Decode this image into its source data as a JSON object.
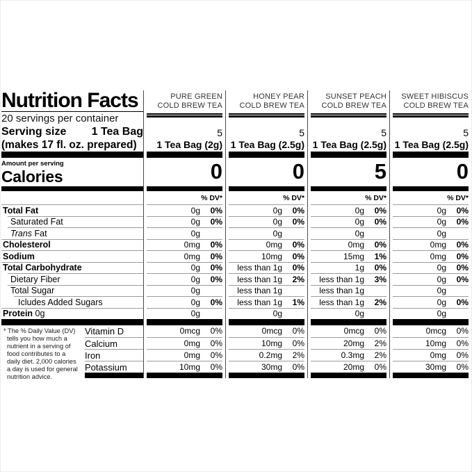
{
  "label": {
    "title": "Nutrition Facts",
    "servings_per_container": "20 servings per container",
    "serving_size_label": "Serving size",
    "serving_size_value": "1 Tea Bag",
    "serving_size_note": "(makes 17 fl. oz. prepared)",
    "amount_per_serving": "Amount per serving",
    "calories_label": "Calories",
    "dv_header": "% DV*",
    "footnote": "* The % Daily Value (DV) tells you how much a nutrient in a serving of food contributes to a daily diet. 2,000 calories a day is used for general nutrition advice."
  },
  "colors": {
    "text": "#000000",
    "hairline": "#9b9b9b",
    "divider": "#4a4a4a",
    "column_name": "#333333"
  },
  "nutrients": [
    {
      "name": "Total Fat",
      "bold": true,
      "indent": 0
    },
    {
      "name": "Saturated Fat",
      "bold": false,
      "indent": 1
    },
    {
      "name": "Trans Fat",
      "bold": false,
      "indent": 1,
      "italic_prefix": "Trans",
      "name_rest": " Fat"
    },
    {
      "name": "Cholesterol",
      "bold": true,
      "indent": 0
    },
    {
      "name": "Sodium",
      "bold": true,
      "indent": 0
    },
    {
      "name": "Total Carbohydrate",
      "bold": true,
      "indent": 0
    },
    {
      "name": "Dietary Fiber",
      "bold": false,
      "indent": 1
    },
    {
      "name": "Total Sugar",
      "bold": false,
      "indent": 1
    },
    {
      "name": "Icludes Added Sugars",
      "bold": false,
      "indent": 2
    },
    {
      "name": "Protein",
      "bold": true,
      "indent": 0,
      "suffix": "0g"
    }
  ],
  "vitamins": [
    "Vitamin D",
    "Calcium",
    "Iron",
    "Potassium"
  ],
  "columns": [
    {
      "name_line1": "PURE GREEN",
      "name_line2": "COLD BREW TEA",
      "servings": "5",
      "serving_size": "1 Tea Bag (2g)",
      "calories": "0",
      "values": [
        [
          "0g",
          "0%"
        ],
        [
          "0g",
          "0%"
        ],
        [
          "0g",
          ""
        ],
        [
          "0mg",
          "0%"
        ],
        [
          "0mg",
          "0%"
        ],
        [
          "0g",
          "0%"
        ],
        [
          "0g",
          "0%"
        ],
        [
          "0g",
          ""
        ],
        [
          "0g",
          "0%"
        ],
        [
          "0g",
          ""
        ]
      ],
      "vitamin_values": [
        [
          "0mcg",
          "0%"
        ],
        [
          "0mg",
          "0%"
        ],
        [
          "0mg",
          "0%"
        ],
        [
          "10mg",
          "0%"
        ]
      ]
    },
    {
      "name_line1": "HONEY PEAR",
      "name_line2": "COLD BREW TEA",
      "servings": "5",
      "serving_size": "1 Tea Bag (2.5g)",
      "calories": "0",
      "values": [
        [
          "0g",
          "0%"
        ],
        [
          "0g",
          "0%"
        ],
        [
          "0g",
          ""
        ],
        [
          "0mg",
          "0%"
        ],
        [
          "10mg",
          "0%"
        ],
        [
          "less than 1g",
          "0%"
        ],
        [
          "less than 1g",
          "2%"
        ],
        [
          "less than 1g",
          ""
        ],
        [
          "less than 1g",
          "1%"
        ],
        [
          "0g",
          ""
        ]
      ],
      "vitamin_values": [
        [
          "0mcg",
          "0%"
        ],
        [
          "10mg",
          "0%"
        ],
        [
          "0.2mg",
          "2%"
        ],
        [
          "30mg",
          "0%"
        ]
      ]
    },
    {
      "name_line1": "SUNSET PEACH",
      "name_line2": "COLD BREW TEA",
      "servings": "5",
      "serving_size": "1 Tea Bag (2.5g)",
      "calories": "5",
      "values": [
        [
          "0g",
          "0%"
        ],
        [
          "0g",
          "0%"
        ],
        [
          "0g",
          ""
        ],
        [
          "0mg",
          "0%"
        ],
        [
          "15mg",
          "1%"
        ],
        [
          "1g",
          "0%"
        ],
        [
          "less than 1g",
          "3%"
        ],
        [
          "less than 1g",
          ""
        ],
        [
          "less than 1g",
          "2%"
        ],
        [
          "0g",
          ""
        ]
      ],
      "vitamin_values": [
        [
          "0mcg",
          "0%"
        ],
        [
          "20mg",
          "2%"
        ],
        [
          "0.3mg",
          "2%"
        ],
        [
          "20mg",
          "0%"
        ]
      ]
    },
    {
      "name_line1": "SWEET HIBISCUS",
      "name_line2": "COLD BREW TEA",
      "servings": "5",
      "serving_size": "1 Tea Bag (2.5g)",
      "calories": "0",
      "values": [
        [
          "0g",
          "0%"
        ],
        [
          "0g",
          "0%"
        ],
        [
          "0g",
          ""
        ],
        [
          "0mg",
          "0%"
        ],
        [
          "0mg",
          "0%"
        ],
        [
          "0g",
          "0%"
        ],
        [
          "0g",
          "0%"
        ],
        [
          "0g",
          ""
        ],
        [
          "0g",
          "0%"
        ],
        [
          "0g",
          ""
        ]
      ],
      "vitamin_values": [
        [
          "0mcg",
          "0%"
        ],
        [
          "10mg",
          "0%"
        ],
        [
          "0mg",
          "0%"
        ],
        [
          "30mg",
          "0%"
        ]
      ]
    }
  ]
}
